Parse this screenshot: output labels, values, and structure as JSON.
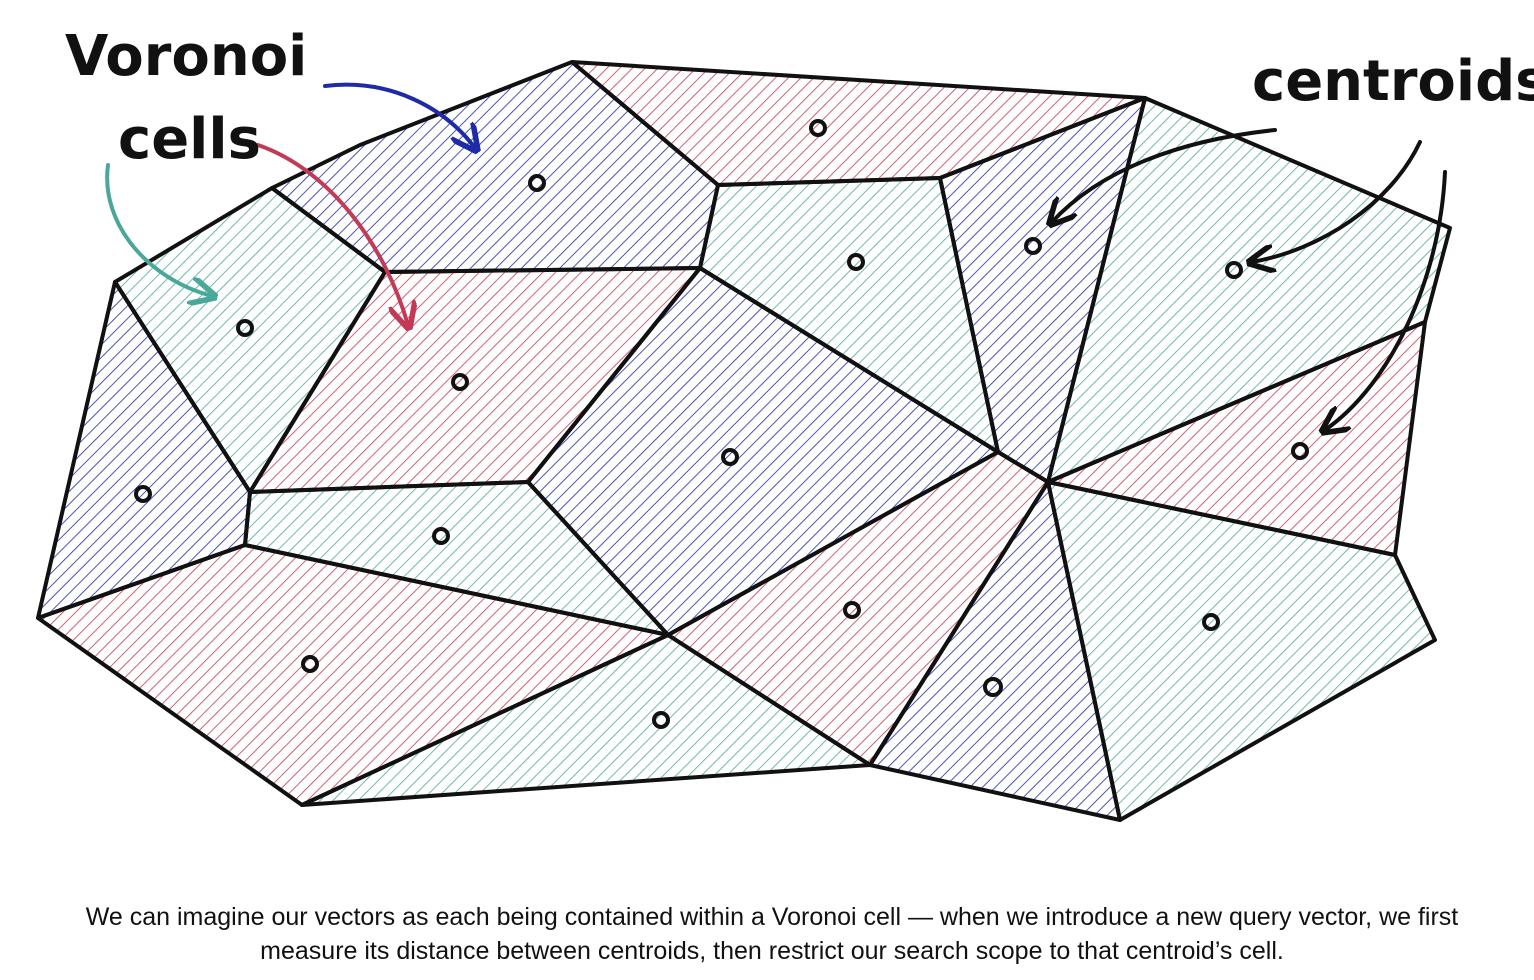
{
  "labels": {
    "voronoi_line1": "Voronoi",
    "voronoi_line2": "cells",
    "centroids": "centroids"
  },
  "caption": {
    "line1": "We can imagine our vectors as each being contained within a Voronoi cell — when we introduce a new query vector, we first",
    "line2": "measure its distance between centroids, then restrict our search scope to that centroid’s cell."
  },
  "colors": {
    "blue": "#1e2aa6",
    "red": "#c23a55",
    "teal": "#4aa89a",
    "outline": "#111111"
  },
  "cells": [
    {
      "name": "cell-top-blue",
      "color": "blue"
    },
    {
      "name": "cell-top-red",
      "color": "red"
    },
    {
      "name": "cell-right-blue",
      "color": "blue"
    },
    {
      "name": "cell-right-teal",
      "color": "teal"
    },
    {
      "name": "cell-left-teal",
      "color": "teal"
    },
    {
      "name": "cell-left-red",
      "color": "red"
    },
    {
      "name": "cell-upper-mid-teal",
      "color": "teal"
    },
    {
      "name": "cell-center-blue",
      "color": "blue"
    },
    {
      "name": "cell-left-blue",
      "color": "blue"
    },
    {
      "name": "cell-lower-left-teal",
      "color": "teal"
    },
    {
      "name": "cell-bottom-left-red",
      "color": "red"
    },
    {
      "name": "cell-mid-red",
      "color": "red"
    },
    {
      "name": "cell-right-red",
      "color": "red"
    },
    {
      "name": "cell-bottom-teal",
      "color": "teal"
    },
    {
      "name": "cell-bottom-blue",
      "color": "blue"
    },
    {
      "name": "cell-bottom-right-teal",
      "color": "teal"
    }
  ]
}
